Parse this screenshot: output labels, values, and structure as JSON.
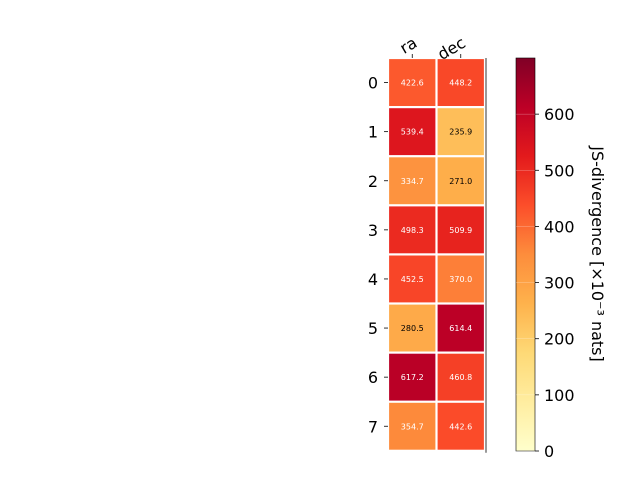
{
  "chart_data": {
    "type": "heatmap",
    "columns": [
      "ra",
      "dec"
    ],
    "rows": [
      "0",
      "1",
      "2",
      "3",
      "4",
      "5",
      "6",
      "7"
    ],
    "values": [
      [
        422.6,
        448.2
      ],
      [
        539.4,
        235.9
      ],
      [
        334.7,
        271.0
      ],
      [
        498.3,
        509.9
      ],
      [
        452.5,
        370.0
      ],
      [
        280.5,
        614.4
      ],
      [
        617.2,
        460.8
      ],
      [
        354.7,
        442.6
      ]
    ],
    "colorbar": {
      "label": "JS-divergence [×10⁻³ nats]",
      "range": [
        0,
        700
      ],
      "ticks": [
        "0",
        "100",
        "200",
        "300",
        "400",
        "500",
        "600"
      ],
      "colormap": "YlOrRd"
    },
    "colors": {
      "cmap": [
        "#ffffcc",
        "#ffeda0",
        "#fed976",
        "#feb24c",
        "#fd8d3c",
        "#fc4e2a",
        "#e31a1c",
        "#bd0026",
        "#800026"
      ],
      "dark_text": "#000000",
      "light_text": "#ffffff"
    }
  }
}
